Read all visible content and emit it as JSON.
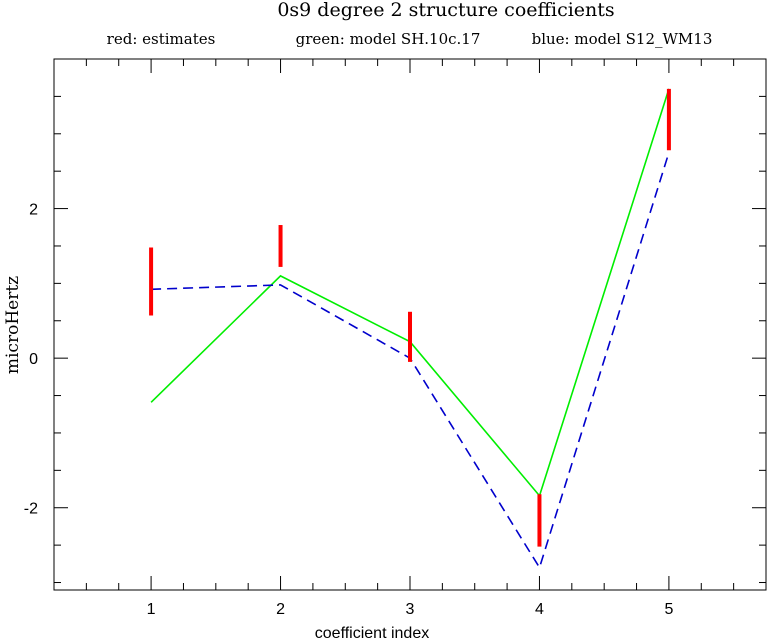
{
  "chart_data": {
    "type": "line",
    "title": "0s9 degree 2 structure coefficients",
    "legend": [
      {
        "text": "red: estimates",
        "color": "#ff0000"
      },
      {
        "text": "green: model SH.10c.17",
        "color": "#00ee00"
      },
      {
        "text": "blue: model S12_WM13",
        "color": "#0000cc"
      }
    ],
    "legend_placement": "top",
    "xlabel": "coefficient index",
    "ylabel": "microHertz",
    "xlim": [
      0.25,
      5.75
    ],
    "ylim": [
      -3.1,
      4.0
    ],
    "x_ticks": [
      1,
      2,
      3,
      4,
      5
    ],
    "x_tick_labels": [
      "1",
      "2",
      "3",
      "4",
      "5"
    ],
    "y_ticks": [
      -2,
      0,
      2
    ],
    "y_tick_labels": [
      "-2",
      "0",
      "2"
    ],
    "grid": false,
    "estimates": {
      "color": "#ff0000",
      "x": [
        1,
        2,
        3,
        4,
        5
      ],
      "low": [
        0.57,
        1.22,
        -0.05,
        -2.52,
        2.78
      ],
      "high": [
        1.48,
        1.78,
        0.62,
        -1.82,
        3.6
      ]
    },
    "series": [
      {
        "color": "#00ee00",
        "style": "solid",
        "x": [
          1,
          2,
          3,
          4,
          5
        ],
        "values": [
          -0.59,
          1.1,
          0.22,
          -1.84,
          3.6
        ]
      },
      {
        "color": "#0000cc",
        "style": "dashed",
        "x": [
          1,
          2,
          3,
          4,
          5
        ],
        "values": [
          0.92,
          0.98,
          0.0,
          -2.8,
          2.75
        ]
      }
    ]
  }
}
